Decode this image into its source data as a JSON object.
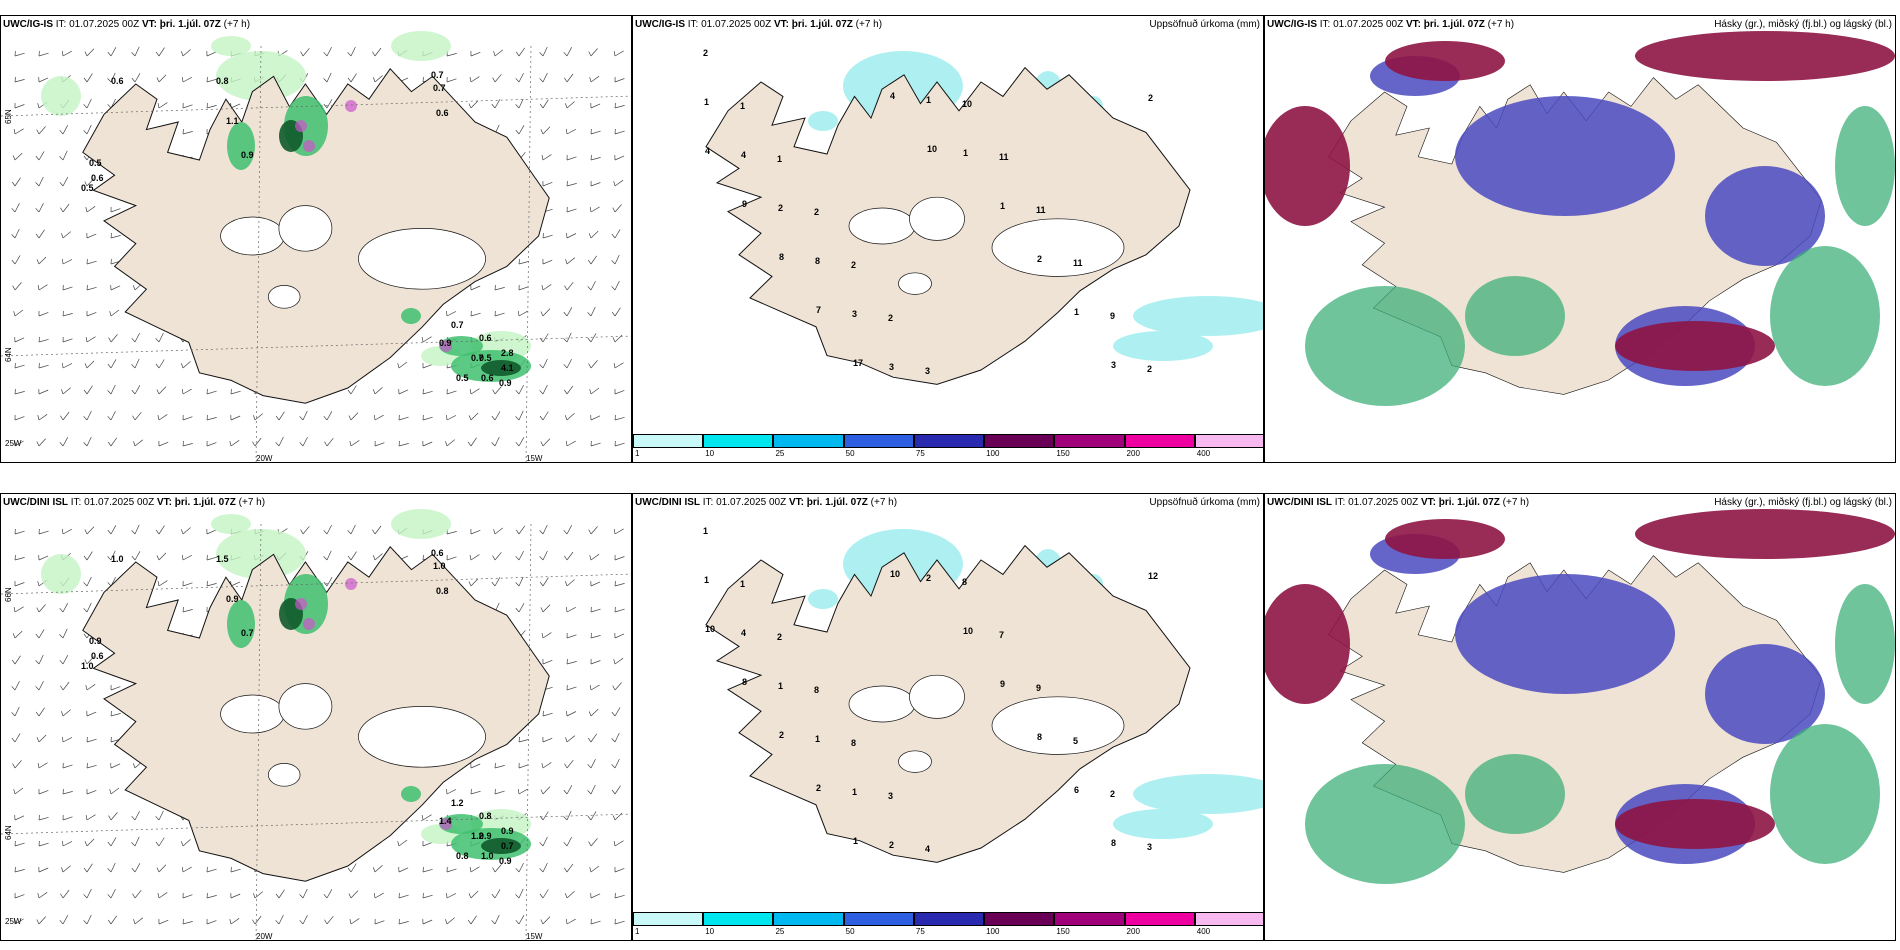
{
  "colors": {
    "land": "#efe3d5",
    "coast": "#111111",
    "rain_light": "#c4f4c4",
    "rain_mid": "#3fbf6f",
    "rain_dark": "#0f5a2b",
    "snow": "#cc55cc",
    "precip": "#aef0f2",
    "cloud_high": "#8e1445",
    "cloud_mid": "#4a4ac0",
    "cloud_low": "#3fb07a"
  },
  "rows": [
    {
      "model": "UWC/IG-IS",
      "it": "IT: 01.07.2025 00Z",
      "vt": "VT: þri. 1.júl. 07Z",
      "lead": "(+7 h)",
      "panel1": {
        "lat_labels": [
          "65N",
          "64N"
        ],
        "lon_labels": [
          "25W",
          "20W",
          "15W"
        ],
        "values": [
          "0.6",
          "0.8",
          "1.1",
          "0.5",
          "0.6",
          "0.5",
          "0.9",
          "0.7",
          "0.7",
          "0.6",
          "0.7",
          "0.9",
          "0.7",
          "0.6",
          "0.5",
          "2.8",
          "4.1",
          "0.6",
          "0.9",
          "0.5"
        ]
      },
      "panel2": {
        "right_title": "Uppsöfnuð úrkoma (mm)",
        "values": [
          "2",
          "1",
          "1",
          "2",
          "2",
          "2",
          "3",
          "10",
          "11",
          "11",
          "11",
          "9",
          "2",
          "1",
          "4",
          "2",
          "8",
          "3",
          "3",
          "1",
          "1",
          "1",
          "2",
          "1",
          "3",
          "2",
          "4",
          "9",
          "8",
          "7",
          "17",
          "4",
          "10"
        ]
      },
      "panel3": {
        "right_title": "Hásky (gr.), miðský (fj.bl.) og lágský (bl.)"
      }
    },
    {
      "model": "UWC/DINI ISL",
      "it": "IT: 01.07.2025 00Z",
      "vt": "VT: þri. 1.júl. 07Z",
      "lead": "(+7 h)",
      "panel1": {
        "lat_labels": [
          "66N",
          "64N"
        ],
        "lon_labels": [
          "25W",
          "20W",
          "15W"
        ],
        "values": [
          "1.0",
          "1.5",
          "0.9",
          "0.9",
          "0.6",
          "1.0",
          "0.7",
          "0.6",
          "1.0",
          "0.8",
          "1.2",
          "1.4",
          "1.2",
          "0.8",
          "0.9",
          "0.9",
          "0.7",
          "1.0",
          "0.9",
          "0.8"
        ]
      },
      "panel2": {
        "right_title": "Uppsöfnuð úrkoma (mm)",
        "values": [
          "1",
          "1",
          "2",
          "8",
          "8",
          "3",
          "4",
          "8",
          "7",
          "9",
          "5",
          "2",
          "3",
          "1",
          "4",
          "1",
          "1",
          "1",
          "2",
          "2",
          "10",
          "9",
          "8",
          "6",
          "8",
          "12",
          "10",
          "8",
          "2",
          "2",
          "1",
          "10"
        ]
      },
      "panel3": {
        "right_title": "Hásky (gr.), miðský (fj.bl.) og lágský (bl.)"
      }
    }
  ],
  "colorbar": {
    "ticks": [
      "1",
      "10",
      "25",
      "50",
      "75",
      "100",
      "150",
      "200",
      "400"
    ],
    "colors": [
      "#c8f8f8",
      "#00e6ee",
      "#00b8f0",
      "#2e5fe0",
      "#2a2ab0",
      "#6a0055",
      "#a0007a",
      "#ee00a0",
      "#f8b8f0"
    ]
  }
}
